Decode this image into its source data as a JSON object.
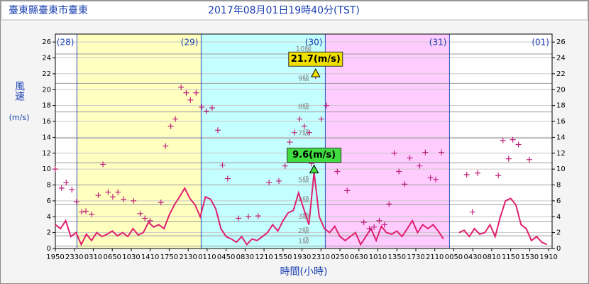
{
  "chart_data": {
    "type": "wind",
    "station": "臺東縣臺東市臺東",
    "time": "2017年08月01日19時40分(TST)",
    "ylabel": "風速",
    "yunit": "(m/s)",
    "xlabel": "時間(小時)",
    "xlim": [
      0,
      96
    ],
    "ylim": [
      0,
      27
    ],
    "yticks": [
      0,
      2,
      4,
      6,
      8,
      10,
      12,
      14,
      16,
      18,
      20,
      22,
      24,
      26
    ],
    "xticks": [
      {
        "value": 0,
        "label": "1950"
      },
      {
        "value": 3.67,
        "label": "2330"
      },
      {
        "value": 7.33,
        "label": "0310"
      },
      {
        "value": 11,
        "label": "0650"
      },
      {
        "value": 14.67,
        "label": "1030"
      },
      {
        "value": 18.33,
        "label": "1410"
      },
      {
        "value": 22,
        "label": "1750"
      },
      {
        "value": 25.67,
        "label": "2130"
      },
      {
        "value": 29.33,
        "label": "0110"
      },
      {
        "value": 33,
        "label": "0450"
      },
      {
        "value": 36.67,
        "label": "0830"
      },
      {
        "value": 40.33,
        "label": "1210"
      },
      {
        "value": 44,
        "label": "1550"
      },
      {
        "value": 47.67,
        "label": "1930"
      },
      {
        "value": 51.33,
        "label": "2310"
      },
      {
        "value": 55,
        "label": "0250"
      },
      {
        "value": 58.67,
        "label": "0630"
      },
      {
        "value": 62.33,
        "label": "1010"
      },
      {
        "value": 66,
        "label": "1350"
      },
      {
        "value": 69.67,
        "label": "1730"
      },
      {
        "value": 73.33,
        "label": "2110"
      },
      {
        "value": 77,
        "label": "0050"
      },
      {
        "value": 80.67,
        "label": "0430"
      },
      {
        "value": 84.33,
        "label": "0810"
      },
      {
        "value": 88,
        "label": "1150"
      },
      {
        "value": 91.67,
        "label": "1530"
      },
      {
        "value": 95.33,
        "label": "1910"
      }
    ],
    "days": [
      {
        "label": "(28)",
        "start": 0,
        "end": 4.17,
        "color": "#ffffff"
      },
      {
        "label": "(29)",
        "start": 4.17,
        "end": 28.17,
        "color": "#ffffc0"
      },
      {
        "label": "(30)",
        "start": 28.17,
        "end": 52.17,
        "color": "#c4ffff"
      },
      {
        "label": "(31)",
        "start": 52.17,
        "end": 76.17,
        "color": "#ffccff"
      },
      {
        "label": "(01)",
        "start": 76.17,
        "end": 96,
        "color": "#ffffff"
      }
    ],
    "beaufort": [
      {
        "value": 0.3,
        "label": "1級"
      },
      {
        "value": 1.6,
        "label": "2級"
      },
      {
        "value": 3.4,
        "label": "3級"
      },
      {
        "value": 5.5,
        "label": "4級"
      },
      {
        "value": 8.0,
        "label": "5級"
      },
      {
        "value": 10.8,
        "label": "6級"
      },
      {
        "value": 13.9,
        "label": "7級"
      },
      {
        "value": 17.2,
        "label": "8級"
      },
      {
        "value": 20.8,
        "label": "9級"
      },
      {
        "value": 24.5,
        "label": "10級"
      }
    ],
    "max_wind_label": "9.6(m/s)",
    "max_gust_label": "21.7(m/s)",
    "series": [
      {
        "kind": "line",
        "color": "#e0206e",
        "x": [
          0,
          1,
          2,
          3,
          4,
          5,
          6,
          7,
          8,
          9,
          10,
          11,
          12,
          13,
          14,
          15,
          16,
          17,
          18,
          19,
          20,
          21,
          22,
          23,
          24,
          25,
          26,
          27,
          28,
          29,
          30,
          31,
          32,
          33,
          34,
          35,
          36,
          37,
          38,
          39,
          40,
          41,
          42,
          43,
          44,
          45,
          46,
          47,
          48,
          49,
          50,
          51,
          52,
          53,
          54,
          55,
          56,
          57,
          58,
          59,
          60,
          61,
          62,
          63,
          64,
          65,
          66,
          67,
          68,
          69,
          70,
          71,
          72,
          73,
          74,
          75,
          76,
          77,
          78,
          79,
          80,
          81,
          82,
          83,
          84,
          85,
          86,
          87,
          88,
          89,
          90,
          91,
          92,
          93,
          94,
          95
        ],
        "values": [
          3.0,
          2.5,
          3.5,
          1.5,
          2.0,
          0.5,
          1.8,
          1.0,
          2.0,
          1.5,
          1.8,
          2.2,
          1.6,
          2.0,
          1.5,
          2.5,
          1.7,
          2.0,
          3.3,
          2.7,
          3.0,
          2.5,
          4.2,
          5.5,
          6.5,
          7.6,
          6.3,
          5.5,
          4.0,
          6.5,
          6.2,
          5.0,
          2.5,
          1.5,
          1.2,
          0.8,
          1.5,
          0.5,
          1.2,
          1.0,
          1.5,
          2.0,
          3.0,
          2.2,
          3.5,
          4.5,
          4.8,
          7.0,
          5.0,
          3.0,
          9.6,
          4.0,
          2.5,
          2.0,
          2.8,
          1.5,
          1.0,
          1.5,
          2.0,
          0.5,
          1.5,
          2.5,
          1.0,
          2.8,
          2.0,
          1.8,
          2.2,
          1.5,
          2.5,
          3.5,
          2.0,
          3.0,
          2.5,
          3.0,
          2.2,
          1.2,
          null,
          null,
          2.0,
          2.3,
          1.5,
          2.5,
          1.8,
          2.0,
          3.0,
          1.5,
          4.0,
          6.0,
          6.3,
          5.5,
          3.0,
          2.5,
          1.0,
          1.5,
          0.8,
          0.5
        ]
      },
      {
        "kind": "gust",
        "color": "#c0207a",
        "x": [
          0,
          1.2,
          2.1,
          3.2,
          4.1,
          5.1,
          5.9,
          7.0,
          8.3,
          9.2,
          10.2,
          11.1,
          12.1,
          13.2,
          15.1,
          16.4,
          17.3,
          18.3,
          20.4,
          21.3,
          22.3,
          23.2,
          24.3,
          25.3,
          26.1,
          27.2,
          28.3,
          29.2,
          30.3,
          31.4,
          32.3,
          33.3,
          35.4,
          37.3,
          39.2,
          41.3,
          43.2,
          44.4,
          45.3,
          46.2,
          47.2,
          48.1,
          49.1,
          49.5,
          50.3,
          51.4,
          52.4,
          53.5,
          54.5,
          56.4,
          59.6,
          60.7,
          61.6,
          62.6,
          63.6,
          64.5,
          65.5,
          66.4,
          67.5,
          68.5,
          70.4,
          71.5,
          72.5,
          73.5,
          74.6,
          79.5,
          80.6,
          81.6,
          85.6,
          86.5,
          87.6,
          88.4,
          89.5,
          91.6
        ],
        "values": [
          10.0,
          7.6,
          8.3,
          7.4,
          5.9,
          4.6,
          4.7,
          4.3,
          6.7,
          10.6,
          7.1,
          6.5,
          7.1,
          6.2,
          6.0,
          4.4,
          3.8,
          3.5,
          5.8,
          12.9,
          15.4,
          16.3,
          20.3,
          19.6,
          18.7,
          19.6,
          17.8,
          17.3,
          17.7,
          14.9,
          10.5,
          8.8,
          3.8,
          4.0,
          4.1,
          8.3,
          8.5,
          10.4,
          13.4,
          14.6,
          16.3,
          15.4,
          14.6,
          10.7,
          21.7,
          16.3,
          18.0,
          11.8,
          9.7,
          7.3,
          3.3,
          2.5,
          2.7,
          3.5,
          3.0,
          5.6,
          12.0,
          9.7,
          8.1,
          11.4,
          10.4,
          12.1,
          8.9,
          8.7,
          12.1,
          9.3,
          4.6,
          9.5,
          9.2,
          13.6,
          11.3,
          13.7,
          13.1,
          11.2
        ]
      }
    ]
  }
}
